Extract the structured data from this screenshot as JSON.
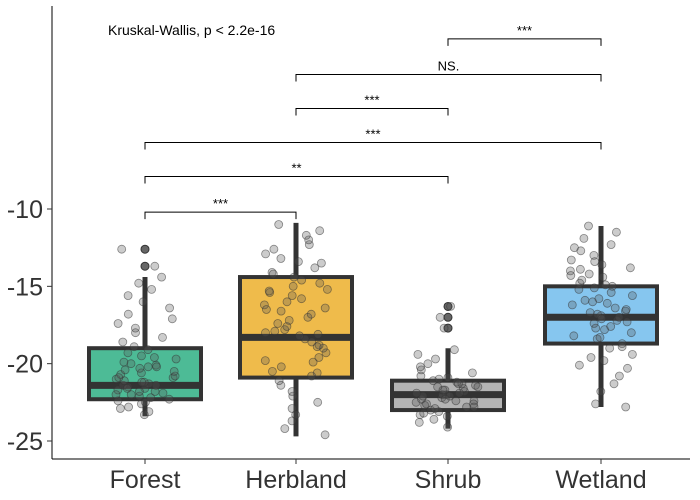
{
  "chart_data": {
    "type": "box",
    "title": "",
    "xlabel": "",
    "ylabel": "",
    "annotation": "Kruskal-Wallis, p < 2.2e-16",
    "categories": [
      "Forest",
      "Herbland",
      "Shrub",
      "Wetland"
    ],
    "colors": [
      "#4dbb96",
      "#efbb4b",
      "#b4b4b4",
      "#86c6ef"
    ],
    "ylim": [
      -26,
      3.5
    ],
    "yticks": [
      -25,
      -20,
      -15,
      -10
    ],
    "ytick_labels": [
      "-25",
      "-20",
      "-15",
      "-10"
    ],
    "grid": false,
    "boxes": [
      {
        "name": "Forest",
        "whisker_low": -23.4,
        "q1": -22.3,
        "median": -21.4,
        "q3": -19.0,
        "whisker_high": -14.4,
        "outliers": [
          -13.7,
          -12.6
        ]
      },
      {
        "name": "Herbland",
        "whisker_low": -24.7,
        "q1": -20.9,
        "median": -18.3,
        "q3": -14.4,
        "whisker_high": -10.9,
        "outliers": []
      },
      {
        "name": "Shrub",
        "whisker_low": -24.2,
        "q1": -23.0,
        "median": -22.0,
        "q3": -21.1,
        "whisker_high": -19.0,
        "outliers": [
          -17.7,
          -17.0,
          -16.3
        ]
      },
      {
        "name": "Wetland",
        "whisker_low": -22.8,
        "q1": -18.7,
        "median": -17.0,
        "q3": -15.0,
        "whisker_high": -11.1,
        "outliers": []
      }
    ],
    "comparisons": [
      {
        "from": "Forest",
        "to": "Herbland",
        "y": -10.2,
        "label": "***"
      },
      {
        "from": "Forest",
        "to": "Shrub",
        "y": -7.9,
        "label": "**"
      },
      {
        "from": "Forest",
        "to": "Wetland",
        "y": -5.7,
        "label": "***"
      },
      {
        "from": "Herbland",
        "to": "Shrub",
        "y": -3.5,
        "label": "***"
      },
      {
        "from": "Herbland",
        "to": "Wetland",
        "y": -1.3,
        "label": "NS."
      },
      {
        "from": "Shrub",
        "to": "Wetland",
        "y": 1.0,
        "label": "***"
      }
    ],
    "jitter_points": {
      "Forest": [
        -23.3,
        -23.1,
        -22.9,
        -22.8,
        -22.6,
        -22.5,
        -22.4,
        -22.3,
        -22.2,
        -22.1,
        -22.0,
        -21.9,
        -21.8,
        -21.7,
        -21.6,
        -21.5,
        -21.4,
        -21.4,
        -21.3,
        -21.2,
        -21.1,
        -21.0,
        -20.9,
        -20.8,
        -20.7,
        -20.6,
        -20.5,
        -20.4,
        -20.3,
        -20.2,
        -20.1,
        -20.0,
        -19.9,
        -19.7,
        -19.5,
        -19.3,
        -19.1,
        -18.9,
        -18.6,
        -18.3,
        -18.0,
        -17.7,
        -17.4,
        -17.1,
        -16.8,
        -16.4,
        -16.0,
        -15.6,
        -15.2,
        -14.8,
        -14.4,
        -13.7,
        -12.6,
        -21.6,
        -21.2,
        -20.9,
        -22.0,
        -21.8,
        -20.2,
        -19.6
      ],
      "Herbland": [
        -24.6,
        -24.2,
        -23.7,
        -23.3,
        -22.9,
        -22.5,
        -22.1,
        -21.8,
        -21.4,
        -21.1,
        -20.8,
        -20.5,
        -20.2,
        -19.9,
        -19.6,
        -19.3,
        -19.0,
        -18.8,
        -18.6,
        -18.4,
        -18.2,
        -18.0,
        -17.8,
        -17.6,
        -17.4,
        -17.2,
        -17.0,
        -16.8,
        -16.6,
        -16.4,
        -16.2,
        -16.0,
        -15.8,
        -15.6,
        -15.4,
        -15.2,
        -15.0,
        -14.8,
        -14.6,
        -14.4,
        -14.1,
        -13.8,
        -13.5,
        -13.2,
        -12.9,
        -12.6,
        -12.3,
        -12.0,
        -11.7,
        -11.4,
        -11.0,
        -18.9,
        -17.9,
        -16.5,
        -15.3,
        -19.8,
        -13.4,
        -20.6,
        -18.1,
        -14.2
      ],
      "Shrub": [
        -24.1,
        -23.8,
        -23.6,
        -23.4,
        -23.3,
        -23.1,
        -23.0,
        -22.9,
        -22.8,
        -22.7,
        -22.6,
        -22.5,
        -22.4,
        -22.3,
        -22.2,
        -22.1,
        -22.0,
        -22.0,
        -21.9,
        -21.8,
        -21.7,
        -21.6,
        -21.5,
        -21.4,
        -21.3,
        -21.2,
        -21.1,
        -21.0,
        -20.8,
        -20.6,
        -20.4,
        -20.2,
        -20.0,
        -19.7,
        -19.4,
        -19.1,
        -17.7,
        -17.0,
        -16.3,
        -22.4,
        -22.1,
        -21.7,
        -23.2,
        -22.6,
        -21.3,
        -20.9,
        -22.8,
        -21.9,
        -22.3,
        -21.5
      ],
      "Wetland": [
        -22.8,
        -22.6,
        -21.8,
        -21.3,
        -20.8,
        -20.3,
        -19.8,
        -19.4,
        -19.0,
        -18.7,
        -18.4,
        -18.2,
        -18.0,
        -17.8,
        -17.6,
        -17.4,
        -17.2,
        -17.0,
        -16.9,
        -16.8,
        -16.6,
        -16.4,
        -16.2,
        -16.0,
        -15.8,
        -15.6,
        -15.4,
        -15.2,
        -15.0,
        -14.8,
        -14.6,
        -14.4,
        -14.2,
        -14.0,
        -13.8,
        -13.6,
        -13.3,
        -13.0,
        -12.7,
        -12.3,
        -11.9,
        -11.5,
        -11.1,
        -17.3,
        -16.1,
        -15.1,
        -18.9,
        -13.9,
        -19.6,
        -17.7,
        -16.5,
        -14.9,
        -12.5,
        -20.1,
        -18.3,
        -15.9,
        -13.4,
        -17.1,
        -16.7,
        -14.3
      ]
    }
  }
}
